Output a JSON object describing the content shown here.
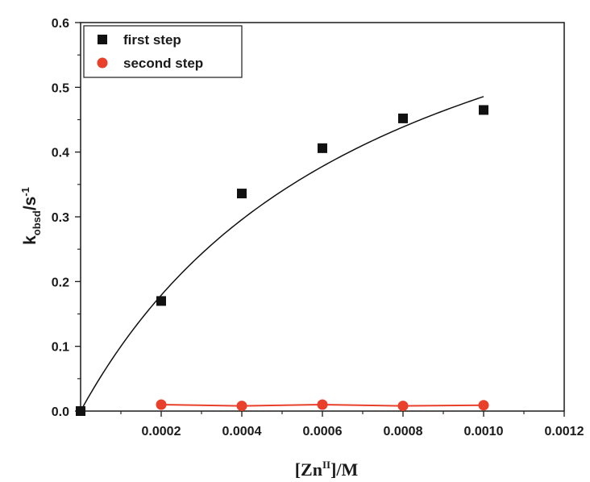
{
  "chart_data": {
    "type": "scatter",
    "xlabel_parts": [
      "[Zn",
      "II",
      "]/M"
    ],
    "ylabel_parts": [
      "k",
      "obsd",
      "/s",
      "-1"
    ],
    "xlim": [
      0,
      0.0012
    ],
    "ylim": [
      0,
      0.6
    ],
    "xticks": [
      0.0002,
      0.0004,
      0.0006,
      0.0008,
      0.001,
      0.0012
    ],
    "xtick_labels": [
      "0.0002",
      "0.0004",
      "0.0006",
      "0.0008",
      "0.0010",
      "0.0012"
    ],
    "yticks": [
      0.0,
      0.1,
      0.2,
      0.3,
      0.4,
      0.5,
      0.6
    ],
    "ytick_labels": [
      "0.0",
      "0.1",
      "0.2",
      "0.3",
      "0.4",
      "0.5",
      "0.6"
    ],
    "legend_position": "top-left",
    "grid": false,
    "series": [
      {
        "name": "first step",
        "marker": "square",
        "color": "#111111",
        "x": [
          0.0,
          0.0002,
          0.0004,
          0.0006,
          0.0008,
          0.001
        ],
        "y": [
          0.0,
          0.17,
          0.336,
          0.406,
          0.452,
          0.465
        ],
        "fit": {
          "type": "saturation",
          "kmax": 0.85,
          "K": 0.00075,
          "color": "#111111"
        }
      },
      {
        "name": "second step",
        "marker": "circle",
        "color": "#e8402a",
        "x": [
          0.0002,
          0.0004,
          0.0006,
          0.0008,
          0.001
        ],
        "y": [
          0.01,
          0.008,
          0.01,
          0.008,
          0.009
        ],
        "fit": {
          "type": "linear",
          "color": "#e8402a"
        }
      }
    ]
  }
}
